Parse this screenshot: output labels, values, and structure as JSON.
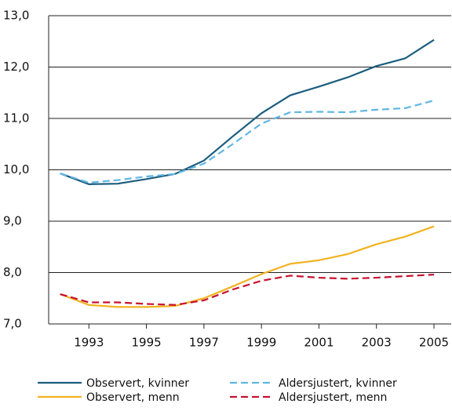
{
  "chart_data": {
    "type": "line",
    "x": [
      1992,
      1993,
      1994,
      1995,
      1996,
      1997,
      1998,
      1999,
      2000,
      2001,
      2002,
      2003,
      2004,
      2005
    ],
    "xlim": [
      1991.6,
      2005.6
    ],
    "xticks": [
      1993,
      1995,
      1997,
      1999,
      2001,
      2003,
      2005
    ],
    "ylim": [
      7,
      13
    ],
    "yticks": [
      {
        "value": 7,
        "label": "7,0"
      },
      {
        "value": 8,
        "label": "8,0"
      },
      {
        "value": 9,
        "label": "9,0"
      },
      {
        "value": 10,
        "label": "10,0"
      },
      {
        "value": 11,
        "label": "11,0"
      },
      {
        "value": 12,
        "label": "12,0"
      },
      {
        "value": 13,
        "label": "13,0"
      }
    ],
    "grid": true,
    "legend": "bottom",
    "series": [
      {
        "name": "Observert, kvinner",
        "color": "#1b5d7e",
        "dashed": false,
        "values": [
          9.93,
          9.72,
          9.73,
          9.82,
          9.92,
          10.18,
          10.65,
          11.1,
          11.45,
          11.62,
          11.8,
          12.02,
          12.17,
          12.53
        ]
      },
      {
        "name": "Aldersjustert, kvinner",
        "color": "#5fb6e2",
        "dashed": true,
        "values": [
          9.93,
          9.75,
          9.8,
          9.87,
          9.92,
          10.12,
          10.5,
          10.9,
          11.12,
          11.13,
          11.12,
          11.17,
          11.2,
          11.35
        ]
      },
      {
        "name": "Observert, menn",
        "color": "#f2b320",
        "dashed": false,
        "values": [
          7.58,
          7.37,
          7.33,
          7.33,
          7.35,
          7.5,
          7.73,
          7.97,
          8.17,
          8.24,
          8.36,
          8.55,
          8.7,
          8.9
        ]
      },
      {
        "name": "Aldersjustert, menn",
        "color": "#c8102e",
        "dashed": true,
        "values": [
          7.58,
          7.42,
          7.42,
          7.39,
          7.37,
          7.46,
          7.67,
          7.84,
          7.94,
          7.9,
          7.88,
          7.9,
          7.93,
          7.96
        ]
      }
    ]
  }
}
